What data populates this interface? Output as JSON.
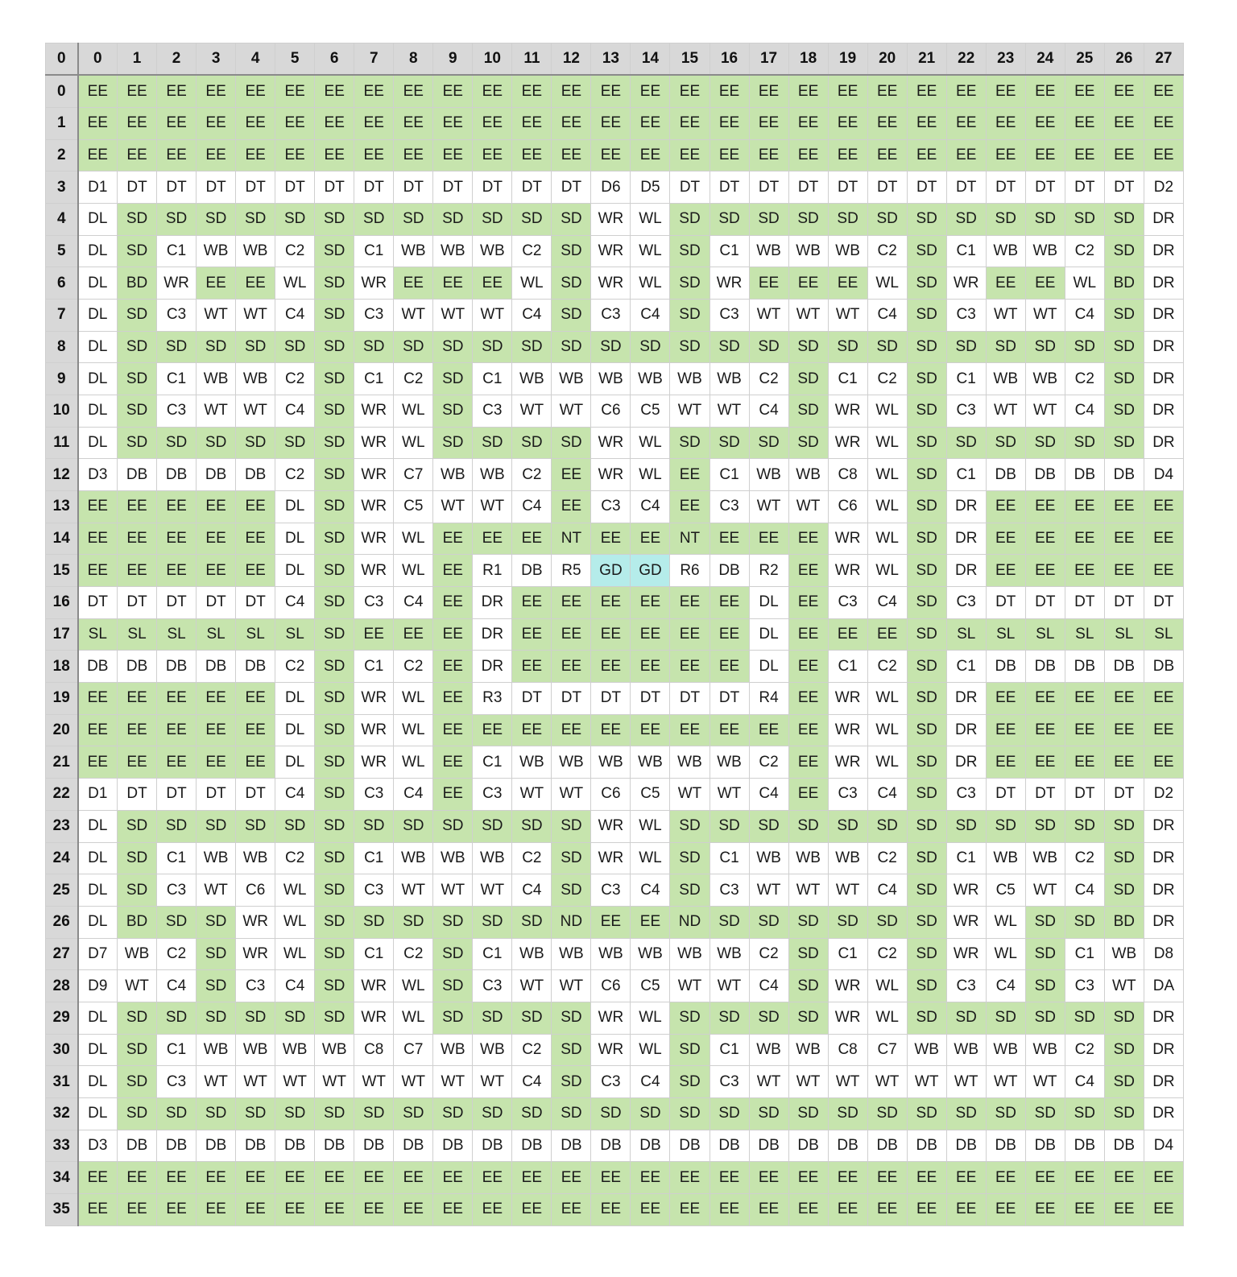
{
  "corner_label": "0",
  "col_headers": [
    "0",
    "1",
    "2",
    "3",
    "4",
    "5",
    "6",
    "7",
    "8",
    "9",
    "10",
    "11",
    "12",
    "13",
    "14",
    "15",
    "16",
    "17",
    "18",
    "19",
    "20",
    "21",
    "22",
    "23",
    "24",
    "25",
    "26",
    "27"
  ],
  "row_headers": [
    "0",
    "1",
    "2",
    "3",
    "4",
    "5",
    "6",
    "7",
    "8",
    "9",
    "10",
    "11",
    "12",
    "13",
    "14",
    "15",
    "16",
    "17",
    "18",
    "19",
    "20",
    "21",
    "22",
    "23",
    "24",
    "25",
    "26",
    "27",
    "28",
    "29",
    "30",
    "31",
    "32",
    "33",
    "34",
    "35"
  ],
  "colors": {
    "green": "#c6e4ad",
    "cyan": "#b5ecea",
    "white": "#ffffff",
    "header": "#d8d8d8"
  },
  "rows": [
    "EE EE EE EE EE EE EE EE EE EE EE EE EE EE EE EE EE EE EE EE EE EE EE EE EE EE EE EE",
    "EE EE EE EE EE EE EE EE EE EE EE EE EE EE EE EE EE EE EE EE EE EE EE EE EE EE EE EE",
    "EE EE EE EE EE EE EE EE EE EE EE EE EE EE EE EE EE EE EE EE EE EE EE EE EE EE EE EE",
    "D1 DT DT DT DT DT DT DT DT DT DT DT DT D6 D5 DT DT DT DT DT DT DT DT DT DT DT DT D2",
    "DL SD SD SD SD SD SD SD SD SD SD SD SD WR WL SD SD SD SD SD SD SD SD SD SD SD SD DR",
    "DL SD C1 WB WB C2 SD C1 WB WB WB C2 SD WR WL SD C1 WB WB WB C2 SD C1 WB WB C2 SD DR",
    "DL BD WR EE EE WL SD WR EE EE EE WL SD WR WL SD WR EE EE EE WL SD WR EE EE WL BD DR",
    "DL SD C3 WT WT C4 SD C3 WT WT WT C4 SD C3 C4 SD C3 WT WT WT C4 SD C3 WT WT C4 SD DR",
    "DL SD SD SD SD SD SD SD SD SD SD SD SD SD SD SD SD SD SD SD SD SD SD SD SD SD SD DR",
    "DL SD C1 WB WB C2 SD C1 C2 SD C1 WB WB WB WB WB WB C2 SD C1 C2 SD C1 WB WB C2 SD DR",
    "DL SD C3 WT WT C4 SD WR WL SD C3 WT WT C6 C5 WT WT C4 SD WR WL SD C3 WT WT C4 SD DR",
    "DL SD SD SD SD SD SD WR WL SD SD SD SD WR WL SD SD SD SD WR WL SD SD SD SD SD SD DR",
    "D3 DB DB DB DB C2 SD WR C7 WB WB C2 EE WR WL EE C1 WB WB C8 WL SD C1 DB DB DB DB D4",
    "EE EE EE EE EE DL SD WR C5 WT WT C4 EE C3 C4 EE C3 WT WT C6 WL SD DR EE EE EE EE EE",
    "EE EE EE EE EE DL SD WR WL EE EE EE NT EE EE NT EE EE EE WR WL SD DR EE EE EE EE EE",
    "EE EE EE EE EE DL SD WR WL EE R1 DB R5 GD GD R6 DB R2 EE WR WL SD DR EE EE EE EE EE",
    "DT DT DT DT DT C4 SD C3 C4 EE DR EE EE EE EE EE EE DL EE C3 C4 SD C3 DT DT DT DT DT",
    "SL SL SL SL SL SL SD EE EE EE DR EE EE EE EE EE EE DL EE EE EE SD SL SL SL SL SL SL",
    "DB DB DB DB DB C2 SD C1 C2 EE DR EE EE EE EE EE EE DL EE C1 C2 SD C1 DB DB DB DB DB",
    "EE EE EE EE EE DL SD WR WL EE R3 DT DT DT DT DT DT R4 EE WR WL SD DR EE EE EE EE EE",
    "EE EE EE EE EE DL SD WR WL EE EE EE EE EE EE EE EE EE EE WR WL SD DR EE EE EE EE EE",
    "EE EE EE EE EE DL SD WR WL EE C1 WB WB WB WB WB WB C2 EE WR WL SD DR EE EE EE EE EE",
    "D1 DT DT DT DT C4 SD C3 C4 EE C3 WT WT C6 C5 WT WT C4 EE C3 C4 SD C3 DT DT DT DT D2",
    "DL SD SD SD SD SD SD SD SD SD SD SD SD WR WL SD SD SD SD SD SD SD SD SD SD SD SD DR",
    "DL SD C1 WB WB C2 SD C1 WB WB WB C2 SD WR WL SD C1 WB WB WB C2 SD C1 WB WB C2 SD DR",
    "DL SD C3 WT C6 WL SD C3 WT WT WT C4 SD C3 C4 SD C3 WT WT WT C4 SD WR C5 WT C4 SD DR",
    "DL BD SD SD WR WL SD SD SD SD SD SD ND EE EE ND SD SD SD SD SD SD WR WL SD SD BD DR",
    "D7 WB C2 SD WR WL SD C1 C2 SD C1 WB WB WB WB WB WB C2 SD C1 C2 SD WR WL SD C1 WB D8",
    "D9 WT C4 SD C3 C4 SD WR WL SD C3 WT WT C6 C5 WT WT C4 SD WR WL SD C3 C4 SD C3 WT DA",
    "DL SD SD SD SD SD SD WR WL SD SD SD SD WR WL SD SD SD SD WR WL SD SD SD SD SD SD DR",
    "DL SD C1 WB WB WB WB C8 C7 WB WB C2 SD WR WL SD C1 WB WB C8 C7 WB WB WB WB C2 SD DR",
    "DL SD C3 WT WT WT WT WT WT WT WT C4 SD C3 C4 SD C3 WT WT WT WT WT WT WT WT C4 SD DR",
    "DL SD SD SD SD SD SD SD SD SD SD SD SD SD SD SD SD SD SD SD SD SD SD SD SD SD SD DR",
    "D3 DB DB DB DB DB DB DB DB DB DB DB DB DB DB DB DB DB DB DB DB DB DB DB DB DB DB D4",
    "EE EE EE EE EE EE EE EE EE EE EE EE EE EE EE EE EE EE EE EE EE EE EE EE EE EE EE EE",
    "EE EE EE EE EE EE EE EE EE EE EE EE EE EE EE EE EE EE EE EE EE EE EE EE EE EE EE EE"
  ]
}
